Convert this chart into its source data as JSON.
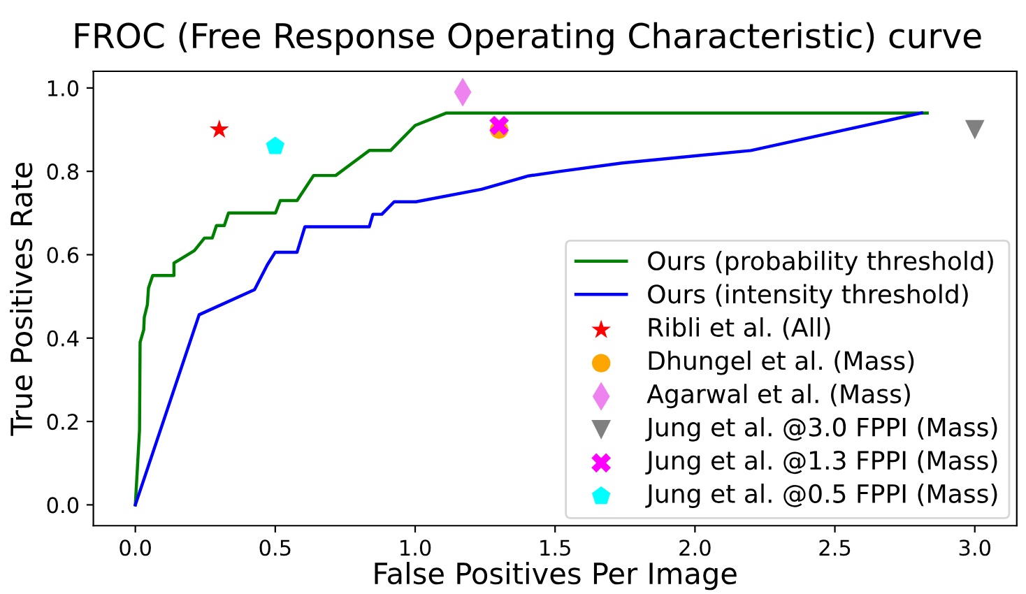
{
  "chart_data": {
    "type": "line",
    "title": "FROC (Free Response Operating Characteristic) curve",
    "xlabel": "False Positives Per Image",
    "ylabel": "True Positives Rate",
    "xlim": [
      -0.15,
      3.15
    ],
    "ylim": [
      -0.05,
      1.04
    ],
    "xticks": [
      {
        "value": 0,
        "label": "0.0"
      },
      0.5,
      {
        "value": 1,
        "label": "1.0"
      },
      1.5,
      {
        "value": 2,
        "label": "2.0"
      },
      2.5,
      {
        "value": 3,
        "label": "3.0"
      }
    ],
    "yticks": [
      {
        "value": 0,
        "label": "0.0"
      },
      0.2,
      0.4,
      0.6,
      0.8,
      {
        "value": 1,
        "label": "1.0"
      }
    ],
    "grid": false,
    "legend": "bottom right",
    "series": [
      {
        "name": "Ours (probability threshold)",
        "color": "#008000",
        "marker": "none",
        "x": [
          0,
          0.015,
          0.017,
          0.03,
          0.032,
          0.043,
          0.047,
          0.062,
          0.138,
          0.138,
          0.211,
          0.247,
          0.275,
          0.29,
          0.318,
          0.333,
          0.501,
          0.518,
          0.578,
          0.637,
          0.716,
          0.836,
          0.912,
          1.0,
          1.112,
          2.83
        ],
        "values": [
          0,
          0.18,
          0.39,
          0.42,
          0.45,
          0.48,
          0.52,
          0.55,
          0.55,
          0.58,
          0.61,
          0.64,
          0.64,
          0.67,
          0.67,
          0.7,
          0.7,
          0.73,
          0.73,
          0.79,
          0.79,
          0.85,
          0.85,
          0.91,
          0.94,
          0.94
        ]
      },
      {
        "name": "Ours (intensity threshold)",
        "color": "#0000ff",
        "marker": "none",
        "x": [
          0,
          0.228,
          0.426,
          0.472,
          0.5,
          0.578,
          0.606,
          0.836,
          0.849,
          0.881,
          0.925,
          1.003,
          1.237,
          1.405,
          1.52,
          1.74,
          2.2,
          2.81
        ],
        "values": [
          0,
          0.456,
          0.516,
          0.576,
          0.606,
          0.606,
          0.667,
          0.667,
          0.697,
          0.697,
          0.727,
          0.727,
          0.757,
          0.789,
          0.8,
          0.82,
          0.85,
          0.94
        ]
      },
      {
        "name": "Ribli et al. (All)",
        "type": "scatter",
        "color": "#ff0000",
        "marker": "star",
        "x": [
          0.3
        ],
        "values": [
          0.9
        ]
      },
      {
        "name": "Dhungel et al. (Mass)",
        "type": "scatter",
        "color": "#ffa500",
        "marker": "circle",
        "x": [
          1.3
        ],
        "values": [
          0.9
        ]
      },
      {
        "name": "Agarwal et al. (Mass)",
        "type": "scatter",
        "color": "#ee82ee",
        "marker": "diamond",
        "x": [
          1.17
        ],
        "values": [
          0.99
        ]
      },
      {
        "name": "Jung et al. @3.0 FPPI (Mass)",
        "type": "scatter",
        "color": "#808080",
        "marker": "triangle",
        "x": [
          3.0
        ],
        "values": [
          0.9
        ]
      },
      {
        "name": "Jung et al. @1.3 FPPI (Mass)",
        "type": "scatter",
        "color": "#ff00ff",
        "marker": "cross",
        "x": [
          1.3
        ],
        "values": [
          0.91
        ]
      },
      {
        "name": "Jung et al. @0.5 FPPI (Mass)",
        "type": "scatter",
        "color": "#00ffff",
        "x": [
          0.5
        ],
        "values": [
          0.86
        ]
      }
    ]
  }
}
